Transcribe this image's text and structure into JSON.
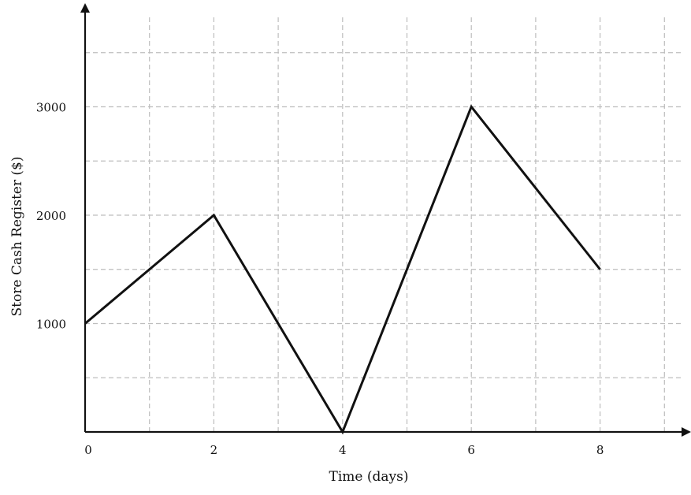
{
  "chart_data": {
    "type": "line",
    "xlabel": "Time (days)",
    "ylabel": "Store Cash Register ($)",
    "x_ticks": [
      0,
      2,
      4,
      6,
      8
    ],
    "x_tick_labels": [
      "0",
      "2",
      "4",
      "6",
      "8"
    ],
    "y_ticks": [
      1000,
      2000,
      3000
    ],
    "y_tick_labels": [
      "1000",
      "2000",
      "3000"
    ],
    "xlim": [
      0,
      9.3
    ],
    "ylim": [
      0,
      3750
    ],
    "x_grid": [
      1,
      2,
      3,
      4,
      5,
      6,
      7,
      8,
      9
    ],
    "y_grid": [
      500,
      1000,
      1500,
      2000,
      2500,
      3000,
      3500
    ],
    "grid": true,
    "series": [
      {
        "x": [
          0,
          2,
          4,
          6,
          8
        ],
        "y": [
          1000,
          2000,
          0,
          3000,
          1500
        ],
        "color": "#111111"
      }
    ]
  }
}
